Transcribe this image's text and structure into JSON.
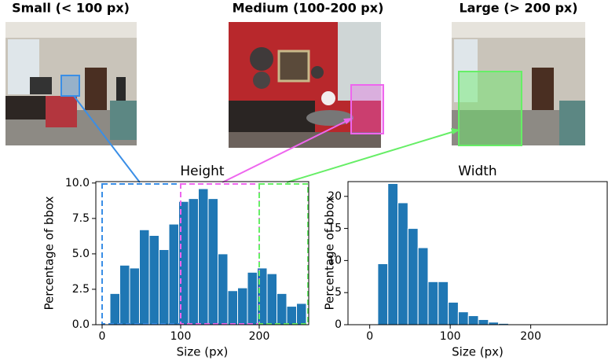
{
  "image_panels": [
    {
      "title": "Small (< 100 px)"
    },
    {
      "title": "Medium (100-200 px)"
    },
    {
      "title": "Large (> 200 px)"
    }
  ],
  "chart_data": [
    {
      "type": "histogram",
      "title": "Height",
      "x_label": "Size (px)",
      "y_label": "Percentage of bbox",
      "color": "#1f77b4",
      "bins": [
        10,
        22.5,
        35,
        47.5,
        60,
        72.5,
        85,
        97.5,
        110,
        122.5,
        135,
        147.5,
        160,
        172.5,
        185,
        197.5,
        210,
        222.5,
        235,
        247.5,
        260
      ],
      "values": [
        2.2,
        4.2,
        4.0,
        6.7,
        6.3,
        5.3,
        7.1,
        8.7,
        8.9,
        9.6,
        8.9,
        5.0,
        2.4,
        2.6,
        3.7,
        4.0,
        3.6,
        2.2,
        1.3,
        1.5
      ],
      "xlim": [
        -8,
        263
      ],
      "xticks": [
        0,
        100,
        200
      ],
      "ylim": [
        0,
        10.1
      ],
      "yticks": [
        {
          "value": 0,
          "label": "0.0"
        },
        2.5,
        {
          "value": 5,
          "label": "5.0"
        },
        7.5,
        {
          "value": 10,
          "label": "10.0"
        }
      ],
      "ranges": [
        {
          "from": 0,
          "to": 100,
          "color": "#3a8ee6"
        },
        {
          "from": 100,
          "to": 200,
          "color": "#ee66ee"
        },
        {
          "from": 200,
          "to": 262,
          "color": "#66ee66"
        }
      ]
    },
    {
      "type": "histogram",
      "title": "Width",
      "x_label": "Size (px)",
      "y_label": "Percentage of bbox",
      "color": "#1f77b4",
      "bins": [
        10,
        22.5,
        35,
        47.5,
        60,
        72.5,
        85,
        97.5,
        110,
        122.5,
        135,
        147.5,
        160,
        172.5,
        185,
        197.5,
        210,
        222.5,
        235,
        247.5,
        260
      ],
      "values": [
        9.5,
        22.0,
        19.0,
        15.0,
        12.0,
        6.7,
        6.7,
        3.5,
        2.0,
        1.4,
        0.8,
        0.4,
        0.2,
        0.1,
        0.05,
        0.05,
        0.03,
        0.02,
        0.02,
        0.01
      ],
      "xlim": [
        -27,
        295
      ],
      "xticks": [
        0,
        100,
        200
      ],
      "ylim": [
        0,
        22.3
      ],
      "yticks": [
        0,
        5,
        10,
        15,
        20
      ]
    }
  ]
}
